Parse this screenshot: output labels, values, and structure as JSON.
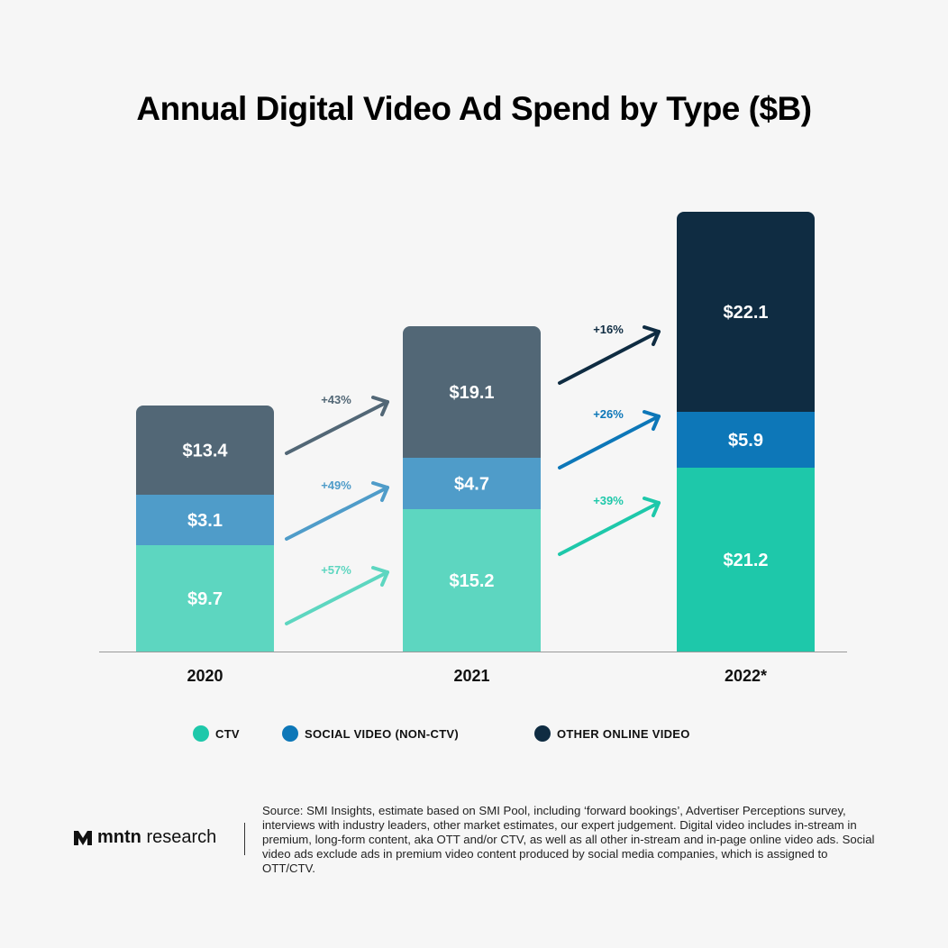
{
  "chart_data": {
    "type": "bar",
    "stacked": true,
    "title": "Annual Digital Video Ad Spend by Type ($B)",
    "categories": [
      "2020",
      "2021",
      "2022*"
    ],
    "series": [
      {
        "name": "CTV",
        "values": [
          9.7,
          15.2,
          21.2
        ],
        "labels": [
          "$9.7",
          "$15.2",
          "$21.2"
        ],
        "colors": [
          "#5dd6c0",
          "#5dd6c0",
          "#1ec8aa"
        ]
      },
      {
        "name": "SOCIAL VIDEO (NON-CTV)",
        "values": [
          3.1,
          4.7,
          5.9
        ],
        "labels": [
          "$3.1",
          "$4.7",
          "$5.9"
        ],
        "colors": [
          "#4f9cc9",
          "#4f9cc9",
          "#0d77b8"
        ]
      },
      {
        "name": "OTHER ONLINE VIDEO",
        "values": [
          13.4,
          19.1,
          22.1
        ],
        "labels": [
          "$13.4",
          "$19.1",
          "$22.1"
        ],
        "colors": [
          "#526776",
          "#526776",
          "#0f2c42"
        ]
      }
    ],
    "growth": [
      {
        "CTV": "+57%",
        "SOCIAL VIDEO (NON-CTV)": "+49%",
        "OTHER ONLINE VIDEO": "+43%"
      },
      {
        "CTV": "+39%",
        "SOCIAL VIDEO (NON-CTV)": "+26%",
        "OTHER ONLINE VIDEO": "+16%"
      }
    ],
    "legend": [
      "CTV",
      "SOCIAL VIDEO (NON-CTV)",
      "OTHER ONLINE VIDEO"
    ],
    "legend_colors": [
      "#1ec8aa",
      "#0d77b8",
      "#0f2c42"
    ],
    "legend_placement": "bottom",
    "grid": false
  },
  "footer": {
    "logo_bold": "mntn",
    "logo_rest": "research",
    "source": "Source: SMI Insights, estimate based on SMI Pool, including ‘forward bookings’, Advertiser Perceptions survey, interviews with industry leaders, other market estimates, our expert judgement. Digital video includes in-stream in premium, long-form content, aka OTT and/or CTV, as well as all other in-stream and in-page online video ads. Social video ads exclude ads in premium video content produced by social media companies, which is assigned to OTT/CTV."
  }
}
